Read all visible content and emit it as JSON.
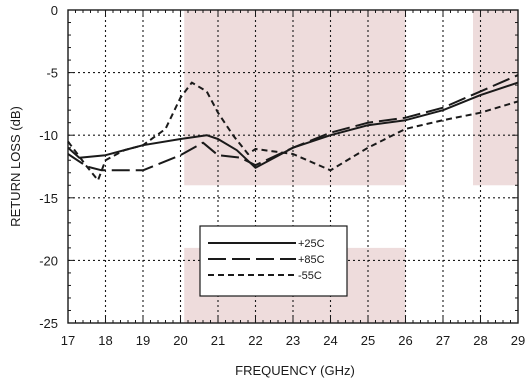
{
  "chart_data": {
    "type": "line",
    "title": "",
    "xlabel": "FREQUENCY (GHz)",
    "ylabel": "RETURN LOSS (dB)",
    "xlim": [
      17,
      29
    ],
    "ylim": [
      -25,
      0
    ],
    "x_ticks": [
      "17",
      "18",
      "19",
      "20",
      "21",
      "22",
      "23",
      "24",
      "25",
      "26",
      "27",
      "28",
      "29"
    ],
    "y_ticks": [
      "0",
      "-5",
      "-10",
      "-15",
      "-20",
      "-25"
    ],
    "grid": true,
    "legend_position": "lower-center",
    "shaded_bands": [
      {
        "x": [
          20.1,
          26.0
        ],
        "y": [
          -14,
          0
        ]
      },
      {
        "x": [
          20.1,
          26.0
        ],
        "y": [
          -25,
          -19
        ]
      },
      {
        "x": [
          27.8,
          29.0
        ],
        "y": [
          -14,
          0
        ]
      }
    ],
    "colors": {
      "band": "#eedcdc",
      "line": "#1a1a1a"
    },
    "series": [
      {
        "name": "+25C",
        "dash": "solid",
        "x": [
          17.0,
          17.3,
          18.0,
          19.0,
          20.0,
          20.7,
          21.0,
          21.5,
          22.0,
          23.0,
          24.0,
          25.0,
          26.0,
          27.0,
          28.0,
          29.0
        ],
        "y": [
          -11.0,
          -11.8,
          -11.6,
          -10.8,
          -10.3,
          -10.0,
          -10.3,
          -11.2,
          -12.6,
          -11.0,
          -10.0,
          -9.2,
          -8.8,
          -8.0,
          -6.8,
          -5.8
        ]
      },
      {
        "name": "+85C",
        "dash": "long",
        "x": [
          17.0,
          17.5,
          17.9,
          19.0,
          20.0,
          20.6,
          21.0,
          21.6,
          22.0,
          23.0,
          24.0,
          25.0,
          26.0,
          27.0,
          28.0,
          29.0
        ],
        "y": [
          -11.5,
          -12.5,
          -12.8,
          -12.8,
          -11.6,
          -10.6,
          -11.6,
          -11.8,
          -12.4,
          -11.0,
          -9.8,
          -9.0,
          -8.6,
          -7.8,
          -6.5,
          -5.2
        ]
      },
      {
        "name": "-55C",
        "dash": "short",
        "x": [
          17.0,
          17.5,
          17.8,
          18.0,
          18.5,
          19.0,
          19.6,
          20.0,
          20.3,
          20.7,
          21.0,
          21.4,
          21.8,
          22.0,
          23.0,
          24.0,
          25.0,
          26.0,
          27.0,
          28.0,
          29.0
        ],
        "y": [
          -10.5,
          -12.5,
          -13.6,
          -12.0,
          -11.2,
          -10.8,
          -9.5,
          -7.0,
          -5.8,
          -6.5,
          -8.2,
          -10.0,
          -11.5,
          -11.1,
          -11.5,
          -12.8,
          -11.0,
          -9.5,
          -8.8,
          -8.2,
          -7.3
        ]
      }
    ]
  }
}
